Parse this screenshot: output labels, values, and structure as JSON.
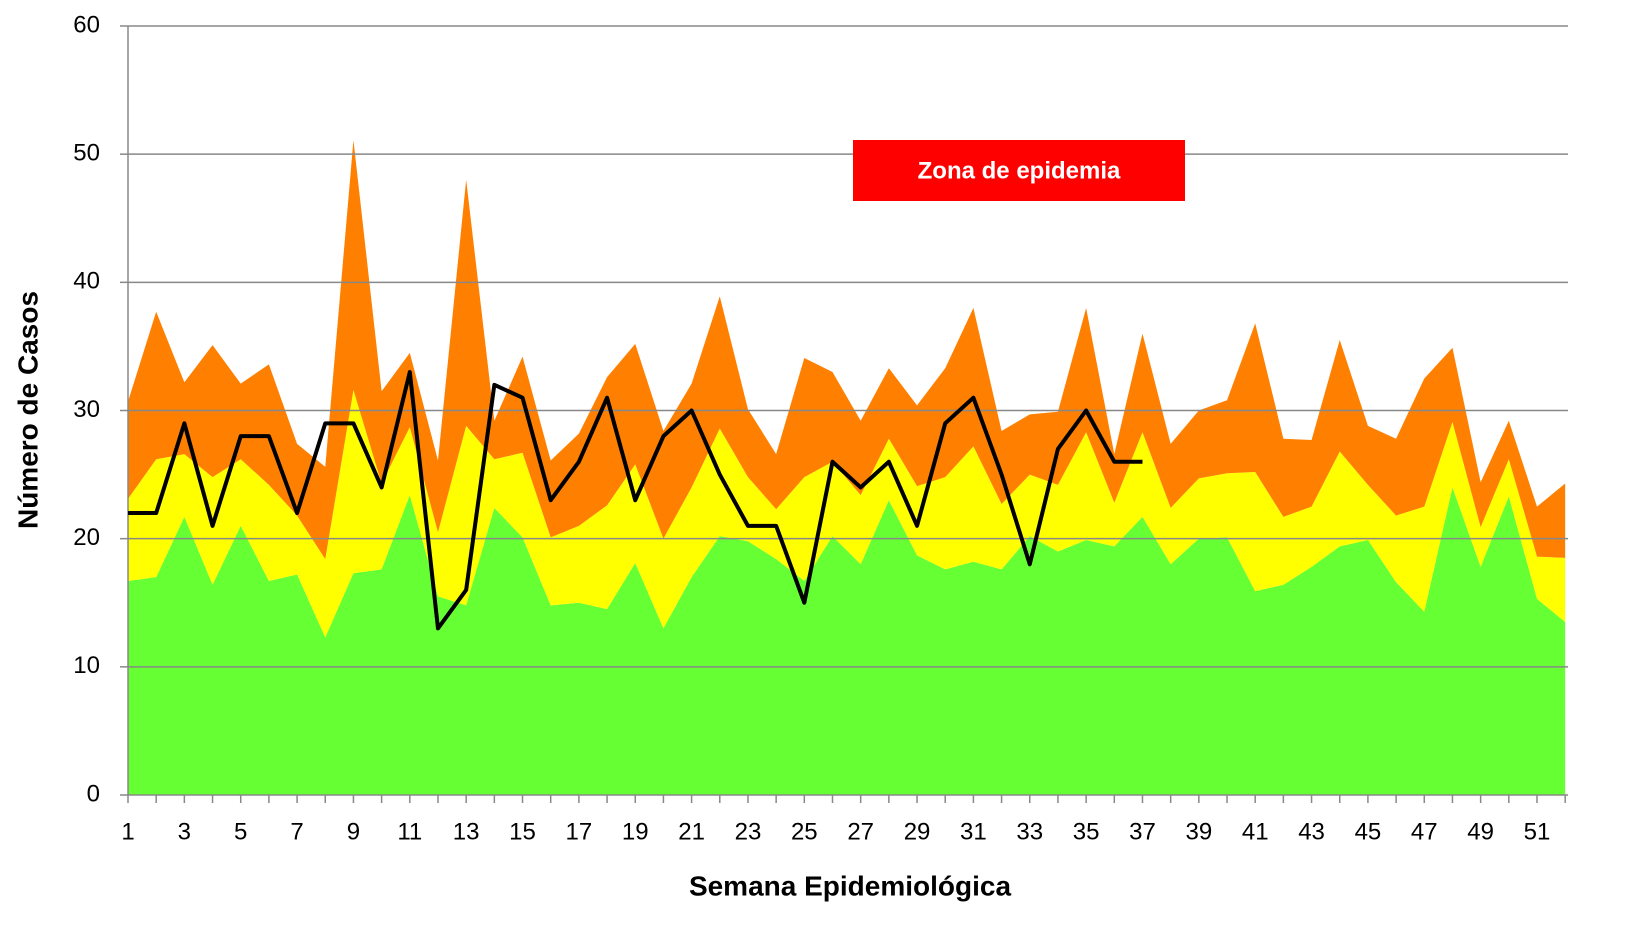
{
  "chart_data": {
    "type": "area",
    "stacked": true,
    "xlabel": "Semana Epidemiológica",
    "ylabel": "Número de Casos",
    "annotation": "Zona de epidemia",
    "annotation_color": "#ff0000",
    "categories": [
      "1",
      null,
      "3",
      null,
      "5",
      null,
      "7",
      null,
      "9",
      null,
      "11",
      null,
      "13",
      null,
      "15",
      null,
      "17",
      null,
      "19",
      null,
      "21",
      null,
      "23",
      null,
      "25",
      null,
      "27",
      null,
      "29",
      null,
      "31",
      null,
      "33",
      null,
      "35",
      null,
      "37",
      null,
      "39",
      null,
      "41",
      null,
      "43",
      null,
      "45",
      null,
      "47",
      null,
      "49",
      null,
      "51",
      null
    ],
    "series": [
      {
        "type": "area",
        "color": "#66ff33",
        "values": [
          16.7,
          17,
          21.7,
          16.4,
          21,
          16.7,
          17.2,
          12.3,
          17.3,
          17.6,
          23.4,
          15.5,
          14.8,
          22.4,
          20.1,
          14.8,
          15,
          14.5,
          18.1,
          13,
          17,
          20.2,
          19.8,
          18.4,
          16.7,
          20.2,
          18,
          23,
          18.7,
          17.6,
          18.2,
          17.6,
          20.2,
          19,
          19.9,
          19.4,
          21.7,
          18,
          20,
          20.1,
          15.9,
          16.4,
          17.8,
          19.4,
          19.9,
          16.6,
          14.3,
          24,
          17.8,
          23.3,
          15.3,
          13.5
        ]
      },
      {
        "type": "area",
        "color": "#ffff00",
        "values": [
          6.4,
          9.2,
          4.9,
          8.4,
          5.2,
          7.5,
          4.6,
          6.1,
          14.3,
          6.7,
          5.3,
          5,
          14,
          3.8,
          6.6,
          5.3,
          6,
          8.1,
          7.7,
          7,
          7,
          8.4,
          5,
          3.9,
          8.1,
          5.8,
          5.4,
          4.8,
          5.4,
          7.2,
          9,
          5.1,
          4.8,
          5.2,
          8.4,
          3.4,
          6.6,
          4.4,
          4.7,
          5,
          9.3,
          5.3,
          4.7,
          7.4,
          4.3,
          5.2,
          8.2,
          5.1,
          3.1,
          2.9,
          3.3,
          5
        ]
      },
      {
        "type": "area",
        "color": "#ff8000",
        "values": [
          7.6,
          11.5,
          5.6,
          10.3,
          5.9,
          9.4,
          5.6,
          7.2,
          19.5,
          7.2,
          5.8,
          5.6,
          19.2,
          3,
          7.5,
          6,
          7.2,
          10,
          9.4,
          8.4,
          8.1,
          10.3,
          5.3,
          4.3,
          9.3,
          7,
          5.8,
          5.5,
          6.3,
          8.5,
          10.8,
          5.7,
          4.7,
          5.7,
          9.7,
          3.8,
          7.7,
          5,
          5.3,
          5.7,
          11.6,
          6.1,
          5.2,
          8.7,
          4.6,
          6,
          10,
          5.8,
          3.5,
          3,
          3.9,
          5.8
        ]
      },
      {
        "type": "line",
        "color": "#000000",
        "values": [
          22,
          22,
          29,
          21,
          28,
          28,
          22,
          29,
          29,
          24,
          33,
          13,
          16,
          32,
          31,
          23,
          26,
          31,
          23,
          28,
          30,
          25,
          21,
          21,
          15,
          26,
          24,
          26,
          21,
          29,
          31,
          25,
          18,
          27,
          30,
          26,
          26,
          null,
          null,
          null,
          null,
          null,
          null,
          null,
          null,
          null,
          null,
          null,
          null,
          null,
          null,
          null
        ]
      }
    ],
    "ylim": [
      0,
      60
    ],
    "yticks": [
      0,
      10,
      20,
      30,
      40,
      50,
      60
    ],
    "grid": true
  }
}
